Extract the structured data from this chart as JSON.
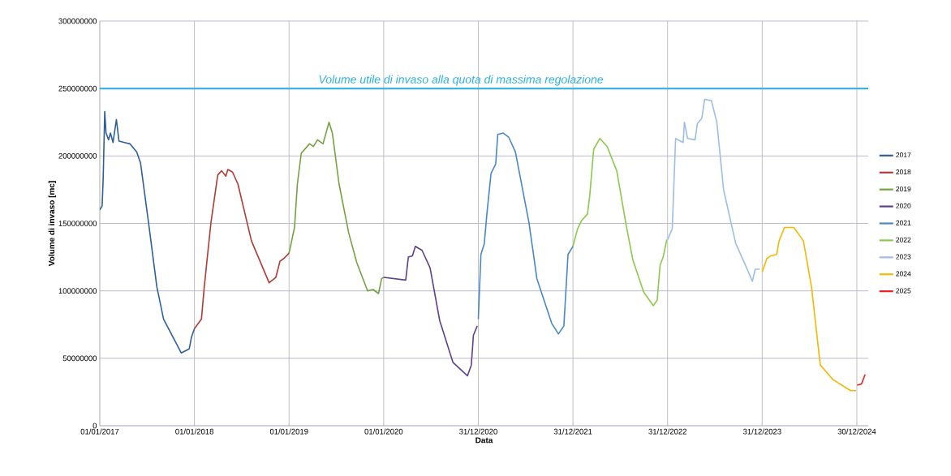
{
  "chart_data": {
    "type": "line",
    "xlabel": "Data",
    "ylabel": "Volume di invaso [mc]",
    "xlim": [
      "2017-01-01",
      "2025-02-12"
    ],
    "ylim": [
      0,
      300000000
    ],
    "xticks": [
      {
        "value": "2017-01-01",
        "label": "01/01/2017"
      },
      {
        "value": "2018-01-01",
        "label": "01/01/2018"
      },
      {
        "value": "2019-01-01",
        "label": "01/01/2019"
      },
      {
        "value": "2020-01-01",
        "label": "01/01/2020"
      },
      {
        "value": "2020-12-31",
        "label": "31/12/2020"
      },
      {
        "value": "2021-12-31",
        "label": "31/12/2021"
      },
      {
        "value": "2022-12-31",
        "label": "31/12/2022"
      },
      {
        "value": "2023-12-31",
        "label": "31/12/2023"
      },
      {
        "value": "2024-12-30",
        "label": "30/12/2024"
      }
    ],
    "yticks": [
      0,
      50000000,
      100000000,
      150000000,
      200000000,
      250000000,
      300000000
    ],
    "grid": true,
    "legend": "right",
    "marker": "none",
    "line_style": "solid",
    "ref_lines": [
      {
        "axis": "y",
        "value": 250000000,
        "label": "Volume utile di invaso alla quota di massima regolazione",
        "color": "#29b0e0"
      }
    ],
    "series": [
      {
        "name": "2017",
        "color": "#2e5f9a",
        "x": [
          "2017-01-01",
          "2017-01-10",
          "2017-01-14",
          "2017-01-20",
          "2017-01-25",
          "2017-02-04",
          "2017-02-11",
          "2017-02-21",
          "2017-03-06",
          "2017-03-16",
          "2017-04-06",
          "2017-04-27",
          "2017-05-23",
          "2017-06-07",
          "2017-07-09",
          "2017-08-09",
          "2017-09-04",
          "2017-11-11",
          "2017-12-12",
          "2017-12-21",
          "2018-01-01"
        ],
        "values": [
          160000000,
          163000000,
          183000000,
          233000000,
          217000000,
          212000000,
          217000000,
          210000000,
          227000000,
          211000000,
          210000000,
          209000000,
          203000000,
          195000000,
          149000000,
          103000000,
          79000000,
          54000000,
          57000000,
          66000000,
          72000000
        ]
      },
      {
        "name": "2018",
        "color": "#b03a35",
        "x": [
          "2018-01-01",
          "2018-01-28",
          "2018-02-08",
          "2018-02-23",
          "2018-03-06",
          "2018-04-01",
          "2018-04-16",
          "2018-05-02",
          "2018-05-10",
          "2018-05-28",
          "2018-06-18",
          "2018-08-09",
          "2018-10-16",
          "2018-11-11",
          "2018-11-27",
          "2018-12-12",
          "2019-01-01"
        ],
        "values": [
          72000000,
          79000000,
          103000000,
          131000000,
          151000000,
          186000000,
          189000000,
          185000000,
          190000000,
          188000000,
          179000000,
          137000000,
          106000000,
          110000000,
          122000000,
          124000000,
          128000000
        ]
      },
      {
        "name": "2019",
        "color": "#77a040",
        "x": [
          "2019-01-01",
          "2019-01-22",
          "2019-02-02",
          "2019-02-17",
          "2019-03-21",
          "2019-04-05",
          "2019-04-21",
          "2019-05-12",
          "2019-06-04",
          "2019-06-17",
          "2019-07-13",
          "2019-08-19",
          "2019-09-19",
          "2019-10-31",
          "2019-11-21",
          "2019-12-12",
          "2019-12-24",
          "2020-01-01"
        ],
        "values": [
          128000000,
          147000000,
          179000000,
          202000000,
          209000000,
          207000000,
          212000000,
          209000000,
          225000000,
          217000000,
          179000000,
          143000000,
          121000000,
          100000000,
          101000000,
          98000000,
          109000000,
          110000000
        ]
      },
      {
        "name": "2020",
        "color": "#5e3f8a",
        "x": [
          "2020-01-01",
          "2020-03-26",
          "2020-04-05",
          "2020-04-21",
          "2020-05-02",
          "2020-05-28",
          "2020-06-28",
          "2020-08-04",
          "2020-09-24",
          "2020-11-19",
          "2020-12-04",
          "2020-12-12",
          "2020-12-27"
        ],
        "values": [
          110000000,
          108000000,
          125000000,
          126000000,
          133000000,
          130000000,
          117000000,
          78000000,
          47000000,
          37000000,
          45000000,
          67000000,
          74000000
        ]
      },
      {
        "name": "2021",
        "color": "#4a86c8",
        "x": [
          "2020-12-31",
          "2021-01-10",
          "2021-01-23",
          "2021-02-02",
          "2021-02-18",
          "2021-03-08",
          "2021-03-16",
          "2021-04-06",
          "2021-04-27",
          "2021-05-23",
          "2021-07-14",
          "2021-08-14",
          "2021-10-10",
          "2021-11-05",
          "2021-11-26",
          "2021-12-12",
          "2021-12-28",
          "2021-12-31"
        ],
        "values": [
          79000000,
          127000000,
          135000000,
          157000000,
          187000000,
          194000000,
          216000000,
          217000000,
          214000000,
          203000000,
          151000000,
          109000000,
          76000000,
          68000000,
          74000000,
          127000000,
          132000000,
          133000000
        ]
      },
      {
        "name": "2022",
        "color": "#8cc84b",
        "x": [
          "2021-12-31",
          "2022-01-18",
          "2022-02-02",
          "2022-02-25",
          "2022-03-06",
          "2022-03-21",
          "2022-04-14",
          "2022-05-12",
          "2022-06-18",
          "2022-07-24",
          "2022-08-19",
          "2022-09-30",
          "2022-11-06",
          "2022-11-21",
          "2022-12-02",
          "2022-12-14",
          "2022-12-28"
        ],
        "values": [
          133000000,
          146000000,
          152000000,
          157000000,
          171000000,
          205000000,
          213000000,
          207000000,
          189000000,
          149000000,
          123000000,
          99000000,
          89000000,
          93000000,
          119000000,
          125000000,
          138000000
        ]
      },
      {
        "name": "2023",
        "color": "#9dbde3",
        "x": [
          "2022-12-31",
          "2023-01-18",
          "2023-01-31",
          "2023-03-01",
          "2023-03-06",
          "2023-03-18",
          "2023-04-16",
          "2023-04-25",
          "2023-05-12",
          "2023-05-23",
          "2023-06-18",
          "2023-07-09",
          "2023-08-04",
          "2023-09-20",
          "2023-11-01",
          "2023-11-23",
          "2023-12-04",
          "2023-12-21"
        ],
        "values": [
          138000000,
          146000000,
          213000000,
          210000000,
          225000000,
          213000000,
          212000000,
          224000000,
          228000000,
          242000000,
          241000000,
          225000000,
          175000000,
          135000000,
          117000000,
          107000000,
          116000000,
          116000000
        ]
      },
      {
        "name": "2024",
        "color": "#f5b800",
        "x": [
          "2023-12-31",
          "2024-01-18",
          "2024-02-03",
          "2024-02-25",
          "2024-03-05",
          "2024-03-26",
          "2024-05-01",
          "2024-06-07",
          "2024-07-08",
          "2024-08-11",
          "2024-09-30",
          "2024-12-06",
          "2024-12-27"
        ],
        "values": [
          114000000,
          124000000,
          126000000,
          127000000,
          137000000,
          147000000,
          147000000,
          137000000,
          103000000,
          45000000,
          34000000,
          26000000,
          26000000
        ]
      },
      {
        "name": "2025",
        "color": "#e8211a",
        "x": [
          "2024-12-31",
          "2025-01-17",
          "2025-01-31"
        ],
        "values": [
          30000000,
          31000000,
          38000000
        ]
      }
    ]
  }
}
